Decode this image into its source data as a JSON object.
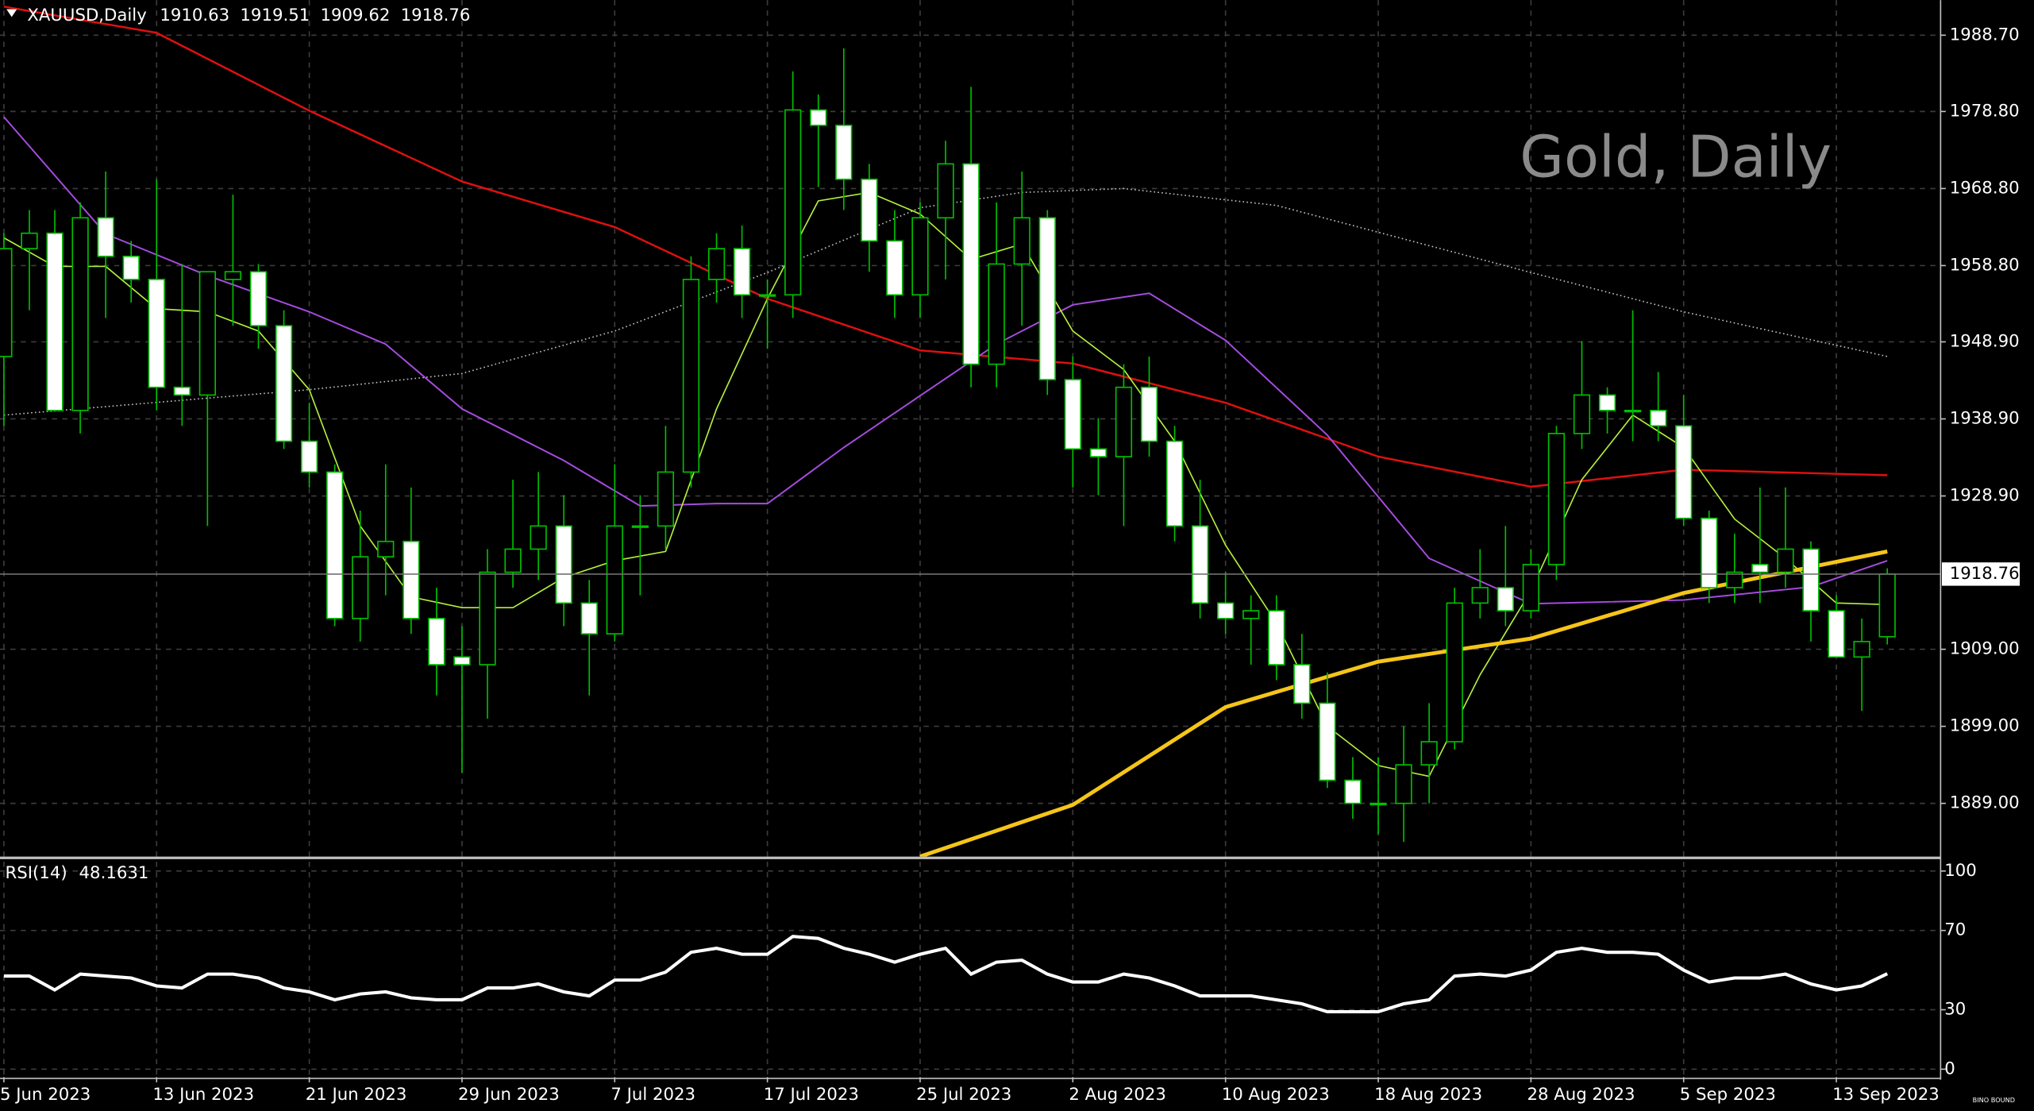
{
  "chart_data": [
    {
      "type": "candlestick",
      "symbol": "XAUUSD,Daily",
      "watermark": "Gold, Daily",
      "logo": "BINO BOUND",
      "categories": [
        "5 Jun 2023",
        null,
        null,
        null,
        null,
        null,
        "13 Jun 2023",
        null,
        null,
        null,
        null,
        null,
        "21 Jun 2023",
        null,
        null,
        null,
        null,
        null,
        "29 Jun 2023",
        null,
        null,
        null,
        null,
        null,
        "7 Jul 2023",
        null,
        null,
        null,
        null,
        null,
        "17 Jul 2023",
        null,
        null,
        null,
        null,
        null,
        "25 Jul 2023",
        null,
        null,
        null,
        null,
        null,
        "2 Aug 2023",
        null,
        null,
        null,
        null,
        null,
        "10 Aug 2023",
        null,
        null,
        null,
        null,
        null,
        "18 Aug 2023",
        null,
        null,
        null,
        null,
        null,
        "28 Aug 2023",
        null,
        null,
        null,
        null,
        null,
        "5 Sep 2023",
        null,
        null,
        null,
        null,
        null,
        "13 Sep 2023",
        null,
        null
      ],
      "open": [
        1947,
        1961,
        1963,
        1940,
        1965,
        1960,
        1957,
        1943,
        1942,
        1957,
        1958,
        1951,
        1936,
        1932,
        1913,
        1921,
        1923,
        1913,
        1908,
        1907,
        1919,
        1922,
        1925,
        1915,
        1911,
        1925,
        1925,
        1932,
        1957,
        1961,
        1955,
        1955,
        1979,
        1977,
        1970,
        1962,
        1955,
        1965,
        1972,
        1946,
        1959,
        1965,
        1944,
        1935,
        1934,
        1943,
        1936,
        1925,
        1915,
        1913,
        1914,
        1907,
        1902,
        1892,
        1889,
        1889,
        1894,
        1897,
        1915,
        1917,
        1914,
        1920,
        1937,
        1942,
        1940,
        1940,
        1938,
        1926,
        1917,
        1920,
        1919,
        1922,
        1914,
        1908,
        1910.63
      ],
      "high": [
        1963,
        1966,
        1966,
        1967,
        1971,
        1962,
        1970,
        1959,
        1958,
        1968,
        1959,
        1953,
        1941,
        1933,
        1927,
        1933,
        1930,
        1917,
        1912,
        1922,
        1931,
        1932,
        1929,
        1918,
        1933,
        1929,
        1938,
        1960,
        1963,
        1964,
        1957,
        1984,
        1981,
        1987,
        1972,
        1966,
        1967,
        1975,
        1982,
        1967,
        1971,
        1966,
        1947,
        1939,
        1946,
        1947,
        1938,
        1931,
        1919,
        1916,
        1916,
        1911,
        1906,
        1895,
        1895,
        1899,
        1902,
        1917,
        1922,
        1925,
        1922,
        1938,
        1949,
        1943,
        1953,
        1945,
        1942,
        1927,
        1924,
        1930,
        1930,
        1923,
        1916,
        1913,
        1919.51
      ],
      "low": [
        1938,
        1953,
        1940,
        1937,
        1952,
        1954,
        1940,
        1938,
        1925,
        1951,
        1948,
        1935,
        1930,
        1912,
        1910,
        1916,
        1911,
        1903,
        1893,
        1900,
        1917,
        1918,
        1912,
        1903,
        1910,
        1916,
        1922,
        1930,
        1954,
        1952,
        1948,
        1952,
        1969,
        1966,
        1958,
        1952,
        1952,
        1957,
        1943,
        1943,
        1951,
        1942,
        1930,
        1929,
        1925,
        1934,
        1923,
        1913,
        1911,
        1907,
        1905,
        1900,
        1891,
        1887,
        1885,
        1884,
        1889,
        1896,
        1913,
        1912,
        1913,
        1918,
        1935,
        1937,
        1936,
        1936,
        1925,
        1915,
        1915,
        1915,
        1917,
        1910,
        1908,
        1901,
        1909.62
      ],
      "close": [
        1961,
        1963,
        1940,
        1965,
        1960,
        1957,
        1943,
        1942,
        1958,
        1958,
        1951,
        1936,
        1932,
        1913,
        1921,
        1923,
        1913,
        1907,
        1907,
        1919,
        1922,
        1925,
        1915,
        1911,
        1925,
        1925,
        1932,
        1957,
        1961,
        1955,
        1955,
        1979,
        1977,
        1970,
        1962,
        1955,
        1965,
        1972,
        1946,
        1959,
        1965,
        1944,
        1935,
        1934,
        1943,
        1936,
        1925,
        1915,
        1913,
        1914,
        1907,
        1902,
        1892,
        1889,
        1889,
        1894,
        1897,
        1915,
        1917,
        1914,
        1920,
        1937,
        1942,
        1940,
        1940,
        1938,
        1926,
        1917,
        1919,
        1919,
        1922,
        1914,
        1908,
        1910,
        1918.76
      ],
      "up_color": "#000000",
      "down_color": "#ffffff",
      "wick_color": "#00c000",
      "overlays": [
        {
          "color": "#c0c0c0",
          "style": "dotted",
          "width": 1,
          "x": [
            0,
            12,
            18,
            24,
            30,
            36,
            40,
            44,
            50,
            60,
            66,
            74
          ],
          "values": [
            1939.4,
            1942.7,
            1944.8,
            1950.3,
            1957.9,
            1966.3,
            1968.3,
            1968.8,
            1966.6,
            1957.9,
            1952.8,
            1947
          ]
        },
        {
          "color": "#e01010",
          "style": "solid",
          "width": 1.5,
          "x": [
            0,
            6,
            12,
            18,
            24,
            30,
            36,
            42,
            48,
            54,
            60,
            66,
            74
          ],
          "values": [
            1992.4,
            1989,
            1978.9,
            1969.7,
            1963.8,
            1954.5,
            1947.8,
            1946.1,
            1941,
            1934,
            1930.1,
            1932.3,
            1931.6
          ]
        },
        {
          "color": "#a64ce0",
          "style": "solid",
          "width": 1.2,
          "x": [
            0,
            4,
            8,
            12,
            15,
            18,
            22,
            25,
            28,
            30,
            33,
            36,
            39,
            42,
            45,
            48,
            52,
            56,
            60,
            66,
            71,
            74
          ],
          "values": [
            1978.1,
            1962.9,
            1957.5,
            1952.8,
            1948.6,
            1940.2,
            1933.5,
            1927.6,
            1927.9,
            1927.9,
            1935.2,
            1941.9,
            1948.6,
            1953.7,
            1955.2,
            1949.1,
            1936.8,
            1920.8,
            1914.9,
            1915.4,
            1917.1,
            1920.5
          ]
        },
        {
          "color": "#b4f03c",
          "style": "solid",
          "width": 1,
          "x": [
            0,
            2,
            4,
            6,
            8,
            10,
            12,
            14,
            16,
            18,
            20,
            22,
            24,
            26,
            28,
            30,
            32,
            34,
            36,
            38,
            40,
            42,
            44,
            46,
            48,
            50,
            52,
            54,
            56,
            58,
            60,
            62,
            64,
            66,
            68,
            70,
            72,
            74
          ],
          "values": [
            1962.4,
            1958.7,
            1958.7,
            1953.2,
            1952.8,
            1950.3,
            1942.7,
            1925,
            1915.8,
            1914.4,
            1914.4,
            1918.3,
            1920.5,
            1921.7,
            1940.2,
            1954.5,
            1967.2,
            1968.3,
            1965.5,
            1959.6,
            1961.6,
            1950.3,
            1945.3,
            1936,
            1922.5,
            1912.4,
            1899,
            1893.9,
            1892.5,
            1905.7,
            1916.6,
            1931,
            1939.4,
            1935.2,
            1925.9,
            1920.8,
            1915,
            1914.8
          ]
        },
        {
          "color": "#f5c518",
          "style": "solid",
          "width": 3,
          "x": [
            36,
            42,
            48,
            54,
            60,
            66,
            74
          ],
          "values": [
            1882.1,
            1888.8,
            1901.5,
            1907.4,
            1910.4,
            1916.3,
            1921.7
          ]
        }
      ],
      "ylim": [
        1882.1,
        1993.25
      ],
      "yticks": [
        {
          "value": 1889,
          "label": "1889.00"
        },
        {
          "value": 1899,
          "label": "1899.00"
        },
        {
          "value": 1909,
          "label": "1909.00"
        },
        {
          "value": 1928.9,
          "label": "1928.90"
        },
        {
          "value": 1938.9,
          "label": "1938.90"
        },
        {
          "value": 1948.9,
          "label": "1948.90"
        },
        {
          "value": 1958.8,
          "label": "1958.80"
        },
        {
          "value": 1968.8,
          "label": "1968.80"
        },
        {
          "value": 1978.8,
          "label": "1978.80"
        },
        {
          "value": 1988.7,
          "label": "1988.70"
        }
      ],
      "grid": true
    },
    {
      "type": "line",
      "title": "RSI(14)",
      "color": "#ffffff",
      "values": [
        47,
        47,
        40,
        48,
        47,
        46,
        42,
        41,
        48,
        48,
        46,
        41,
        39,
        35,
        38,
        39,
        36,
        35,
        35,
        41,
        41,
        43,
        39,
        37,
        45,
        45,
        49,
        59,
        61,
        58,
        58,
        67,
        66,
        61,
        58,
        54,
        58,
        61,
        48,
        54,
        55,
        48,
        44,
        44,
        48,
        46,
        42,
        37,
        37,
        37,
        35,
        33,
        29,
        29,
        29,
        33,
        35,
        47,
        48,
        47,
        50,
        59,
        61,
        59,
        59,
        58,
        50,
        44,
        46,
        46,
        48,
        43,
        40,
        42,
        48.1631
      ],
      "ylim": [
        -4,
        106
      ],
      "yticks": [
        0,
        30,
        70,
        100
      ],
      "grid": true
    }
  ]
}
